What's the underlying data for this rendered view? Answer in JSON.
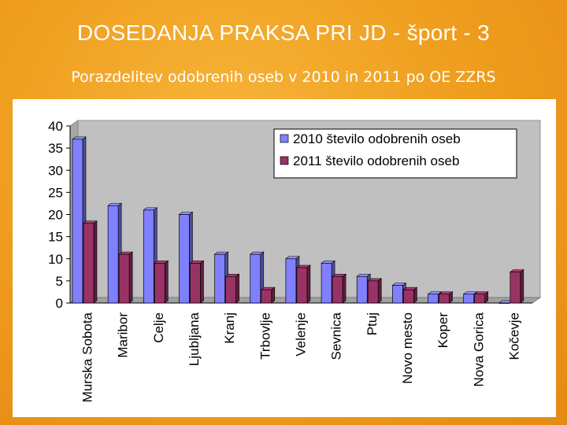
{
  "slide": {
    "title": "DOSEDANJA PRAKSA PRI JD - šport - 3",
    "subtitle": "Porazdelitev odobrenih oseb v 2010 in 2011 po OE ZZRS"
  },
  "chart_data": {
    "type": "bar",
    "title": "",
    "xlabel": "",
    "ylabel": "",
    "ylim": [
      0,
      40
    ],
    "yticks": [
      0,
      5,
      10,
      15,
      20,
      25,
      30,
      35,
      40
    ],
    "categories": [
      "Murska Sobota",
      "Maribor",
      "Celje",
      "Ljubljana",
      "Kranj",
      "Trbovlje",
      "Velenje",
      "Sevnica",
      "Ptuj",
      "Novo mesto",
      "Koper",
      "Nova Gorica",
      "Kočevje"
    ],
    "series": [
      {
        "name": "2010 število odobrenih oseb",
        "color": "#8080ff",
        "values": [
          37,
          22,
          21,
          20,
          11,
          11,
          10,
          9,
          6,
          4,
          2,
          2,
          0
        ]
      },
      {
        "name": "2011 število odobrenih oseb",
        "color": "#993366",
        "values": [
          18,
          11,
          9,
          9,
          6,
          3,
          8,
          6,
          5,
          3,
          2,
          2,
          7
        ]
      }
    ],
    "grid": false,
    "legend_position": "top-right"
  }
}
